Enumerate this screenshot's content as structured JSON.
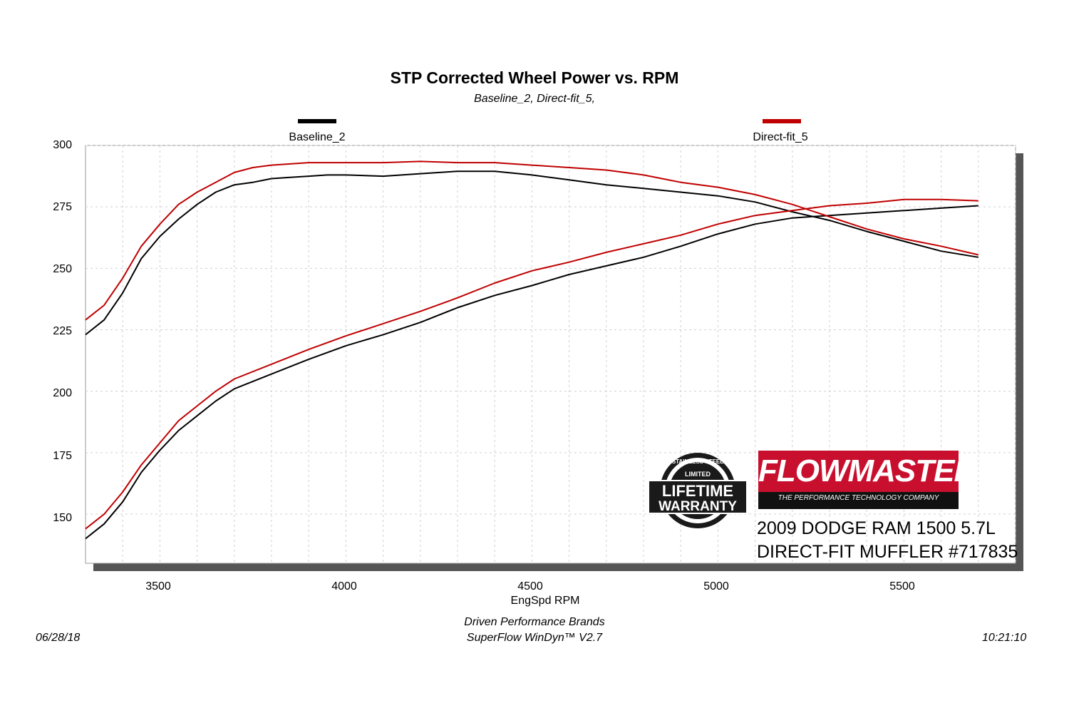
{
  "chart_data": {
    "type": "line",
    "title": "STP Corrected Wheel Power vs. RPM",
    "subtitle": "Baseline_2, Direct-fit_5,",
    "xlabel": "EngSpd  RPM",
    "ylabel": "",
    "xlim": [
      3300,
      5800
    ],
    "ylim": [
      130,
      300
    ],
    "x_ticks": [
      "3500",
      "4000",
      "4500",
      "5000",
      "5500"
    ],
    "y_ticks": [
      "300",
      "275",
      "250",
      "225",
      "200",
      "175",
      "150"
    ],
    "grid": true,
    "legend_position": "top",
    "series": [
      {
        "name": "Baseline_2",
        "color": "#000000",
        "curves": [
          {
            "x": [
              3300,
              3350,
              3400,
              3450,
              3500,
              3550,
              3600,
              3650,
              3700,
              3750,
              3800,
              3850,
              3900,
              3950,
              4000,
              4100,
              4200,
              4300,
              4400,
              4500,
              4600,
              4700,
              4800,
              4900,
              5000,
              5100,
              5200,
              5300,
              5400,
              5500,
              5600,
              5700
            ],
            "y": [
              223,
              229,
              240,
              254,
              263,
              270,
              276,
              281,
              284,
              285,
              286.5,
              287,
              287.5,
              288,
              288,
              287.5,
              288.5,
              289.5,
              289.5,
              288,
              286,
              284,
              282.5,
              281,
              279.5,
              277,
              273,
              269.5,
              265,
              261,
              257,
              254.5
            ]
          },
          {
            "x": [
              3300,
              3350,
              3400,
              3450,
              3500,
              3550,
              3600,
              3650,
              3700,
              3800,
              3900,
              4000,
              4100,
              4200,
              4300,
              4400,
              4500,
              4600,
              4700,
              4800,
              4900,
              5000,
              5100,
              5200,
              5300,
              5400,
              5500,
              5600,
              5700
            ],
            "y": [
              140,
              146,
              155,
              167,
              176,
              184,
              190,
              196,
              201,
              207,
              213,
              218.5,
              223,
              228,
              234,
              239,
              243,
              247.5,
              251,
              254.5,
              259,
              264,
              268,
              270.5,
              271.5,
              272.5,
              273.5,
              274.5,
              275.5
            ]
          }
        ]
      },
      {
        "name": "Direct-fit_5",
        "color": "#c00000",
        "curves": [
          {
            "x": [
              3300,
              3350,
              3400,
              3450,
              3500,
              3550,
              3600,
              3650,
              3700,
              3750,
              3800,
              3850,
              3900,
              3950,
              4000,
              4100,
              4200,
              4300,
              4400,
              4500,
              4600,
              4700,
              4800,
              4900,
              5000,
              5100,
              5200,
              5300,
              5400,
              5500,
              5600,
              5700
            ],
            "y": [
              229,
              235,
              246,
              259,
              268,
              276,
              281,
              285,
              289,
              291,
              292,
              292.5,
              293,
              293,
              293,
              293,
              293.5,
              293,
              293,
              292,
              291,
              290,
              288,
              285,
              283,
              280,
              276,
              271,
              266,
              262,
              259,
              255.5
            ]
          },
          {
            "x": [
              3300,
              3350,
              3400,
              3450,
              3500,
              3550,
              3600,
              3650,
              3700,
              3800,
              3900,
              4000,
              4100,
              4200,
              4300,
              4400,
              4500,
              4600,
              4700,
              4800,
              4900,
              5000,
              5100,
              5200,
              5300,
              5400,
              5500,
              5600,
              5700
            ],
            "y": [
              144,
              150,
              159,
              170,
              179,
              188,
              194,
              200,
              205,
              211,
              217,
              222.5,
              227.5,
              232.5,
              238,
              244,
              249,
              252.5,
              256.5,
              260,
              263.5,
              268,
              271.5,
              273.5,
              275.5,
              276.5,
              278,
              278,
              277.5
            ]
          }
        ]
      }
    ]
  },
  "footer": {
    "company": "Driven Performance Brands",
    "software": "SuperFlow WinDyn™  V2.7",
    "date": "06/28/18",
    "time": "10:21:10"
  },
  "branding": {
    "logo_text": "FLOWMASTER",
    "logo_tagline": "THE PERFORMANCE TECHNOLOGY COMPANY",
    "warranty_badge": "STAINLESS STEEL FLOWMASTER LIMITED LIFETIME WARRANTY",
    "caption_line1": "2009 DODGE RAM 1500 5.7L",
    "caption_line2": "DIRECT-FIT MUFFLER #717835"
  }
}
